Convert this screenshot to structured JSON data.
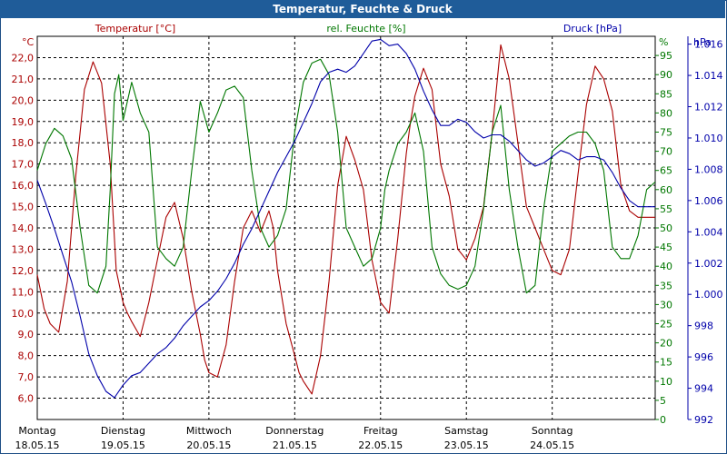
{
  "title": "Temperatur, Feuchte & Druck",
  "colors": {
    "titlebar": "#1f5c99",
    "temperature": "#aa0000",
    "humidity": "#007700",
    "pressure": "#0000aa",
    "grid": "#000000"
  },
  "chart_data": {
    "type": "line",
    "title": "Temperatur, Feuchte & Druck",
    "grid": true,
    "x_labels": [
      {
        "day": "Montag",
        "date": "18.05.15"
      },
      {
        "day": "Dienstag",
        "date": "19.05.15"
      },
      {
        "day": "Mittwoch",
        "date": "20.05.15"
      },
      {
        "day": "Donnerstag",
        "date": "21.05.15"
      },
      {
        "day": "Freitag",
        "date": "22.05.15"
      },
      {
        "day": "Samstag",
        "date": "23.05.15"
      },
      {
        "day": "Sonntag",
        "date": "24.05.15"
      }
    ],
    "x_range": [
      0,
      7.2
    ],
    "axes": {
      "temperature": {
        "label": "Temperatur [°C]",
        "unit": "°C",
        "range": [
          5.0,
          23.0
        ],
        "ticks": [
          "6,0",
          "7,0",
          "8,0",
          "9,0",
          "10,0",
          "11,0",
          "12,0",
          "13,0",
          "14,0",
          "15,0",
          "16,0",
          "17,0",
          "18,0",
          "19,0",
          "20,0",
          "21,0",
          "22,0"
        ]
      },
      "humidity": {
        "label": "rel. Feuchte [%]",
        "unit": "%",
        "range": [
          0,
          100
        ],
        "ticks": [
          "0",
          "5",
          "10",
          "15",
          "20",
          "25",
          "30",
          "35",
          "40",
          "45",
          "50",
          "55",
          "60",
          "65",
          "70",
          "75",
          "80",
          "85",
          "90",
          "95"
        ]
      },
      "pressure": {
        "label": "Druck [hPa]",
        "unit": "hPa",
        "range": [
          992,
          1016.5
        ],
        "ticks": [
          "992",
          "994",
          "996",
          "998",
          "1.000",
          "1.002",
          "1.004",
          "1.006",
          "1.008",
          "1.010",
          "1.012",
          "1.014",
          "1.016"
        ]
      }
    },
    "series": [
      {
        "name": "Temperatur [°C]",
        "axis": "temperature",
        "x": [
          0,
          0.08,
          0.15,
          0.25,
          0.35,
          0.45,
          0.55,
          0.65,
          0.75,
          0.85,
          0.92,
          1.0,
          1.05,
          1.1,
          1.2,
          1.3,
          1.4,
          1.5,
          1.6,
          1.7,
          1.8,
          1.9,
          1.95,
          2.0,
          2.1,
          2.2,
          2.3,
          2.4,
          2.5,
          2.6,
          2.7,
          2.75,
          2.8,
          2.9,
          3.0,
          3.05,
          3.1,
          3.2,
          3.3,
          3.4,
          3.5,
          3.6,
          3.7,
          3.8,
          3.9,
          4.0,
          4.1,
          4.2,
          4.3,
          4.35,
          4.4,
          4.5,
          4.6,
          4.7,
          4.8,
          4.9,
          5.0,
          5.1,
          5.2,
          5.3,
          5.4,
          5.5,
          5.6,
          5.7,
          5.8,
          5.9,
          6.0,
          6.1,
          6.2,
          6.3,
          6.4,
          6.5,
          6.6,
          6.7,
          6.8,
          6.9,
          7.0,
          7.1,
          7.2
        ],
        "y": [
          11.8,
          10.2,
          9.5,
          9.1,
          11.5,
          16.5,
          20.5,
          21.8,
          20.8,
          17.0,
          12.0,
          10.5,
          10.0,
          9.6,
          8.9,
          10.5,
          12.5,
          14.5,
          15.2,
          13.5,
          11.0,
          9.0,
          7.8,
          7.2,
          7.0,
          8.5,
          11.5,
          14.0,
          14.8,
          13.8,
          14.8,
          14.0,
          12.0,
          9.5,
          8.0,
          7.2,
          6.8,
          6.2,
          8.0,
          11.5,
          16.0,
          18.3,
          17.2,
          15.8,
          12.5,
          10.5,
          10.0,
          13.5,
          17.5,
          19.0,
          20.2,
          21.5,
          20.5,
          17.0,
          15.5,
          13.0,
          12.5,
          13.5,
          15.0,
          18.5,
          22.6,
          21.0,
          18.0,
          15.0,
          14.0,
          13.0,
          12.0,
          11.8,
          13.0,
          16.5,
          19.8,
          21.6,
          21.0,
          19.5,
          16.0,
          14.8,
          14.5,
          14.5,
          14.5
        ]
      },
      {
        "name": "rel. Feuchte [%]",
        "axis": "humidity",
        "x": [
          0,
          0.1,
          0.2,
          0.3,
          0.4,
          0.5,
          0.6,
          0.7,
          0.8,
          0.85,
          0.9,
          0.95,
          1.0,
          1.1,
          1.2,
          1.3,
          1.4,
          1.5,
          1.6,
          1.7,
          1.8,
          1.9,
          2.0,
          2.1,
          2.2,
          2.3,
          2.4,
          2.5,
          2.6,
          2.7,
          2.8,
          2.9,
          3.0,
          3.1,
          3.2,
          3.3,
          3.4,
          3.5,
          3.6,
          3.7,
          3.8,
          3.9,
          4.0,
          4.05,
          4.1,
          4.2,
          4.3,
          4.4,
          4.5,
          4.6,
          4.7,
          4.8,
          4.9,
          5.0,
          5.1,
          5.2,
          5.3,
          5.4,
          5.5,
          5.6,
          5.7,
          5.8,
          5.9,
          6.0,
          6.1,
          6.2,
          6.3,
          6.4,
          6.5,
          6.6,
          6.7,
          6.8,
          6.9,
          7.0,
          7.1,
          7.2
        ],
        "y": [
          65,
          72,
          76,
          74,
          68,
          50,
          35,
          33,
          40,
          60,
          85,
          90,
          78,
          88,
          80,
          75,
          45,
          42,
          40,
          45,
          65,
          83,
          75,
          80,
          86,
          87,
          84,
          65,
          50,
          45,
          48,
          55,
          75,
          88,
          93,
          94,
          90,
          75,
          50,
          45,
          40,
          42,
          50,
          60,
          65,
          72,
          75,
          80,
          70,
          45,
          38,
          35,
          34,
          35,
          40,
          55,
          75,
          82,
          60,
          45,
          33,
          35,
          55,
          70,
          72,
          74,
          75,
          75,
          72,
          65,
          45,
          42,
          42,
          48,
          60,
          62
        ]
      },
      {
        "name": "Druck [hPa]",
        "axis": "pressure",
        "x": [
          0,
          0.1,
          0.2,
          0.3,
          0.4,
          0.5,
          0.6,
          0.7,
          0.8,
          0.9,
          1.0,
          1.1,
          1.2,
          1.3,
          1.4,
          1.5,
          1.6,
          1.7,
          1.8,
          1.9,
          2.0,
          2.1,
          2.2,
          2.3,
          2.4,
          2.5,
          2.6,
          2.7,
          2.8,
          2.9,
          3.0,
          3.1,
          3.2,
          3.3,
          3.4,
          3.5,
          3.6,
          3.7,
          3.8,
          3.9,
          4.0,
          4.1,
          4.2,
          4.3,
          4.4,
          4.5,
          4.6,
          4.7,
          4.8,
          4.9,
          5.0,
          5.1,
          5.2,
          5.3,
          5.4,
          5.5,
          5.6,
          5.7,
          5.8,
          5.9,
          6.0,
          6.1,
          6.2,
          6.3,
          6.4,
          6.5,
          6.6,
          6.7,
          6.8,
          6.9,
          7.0,
          7.1,
          7.2
        ],
        "y": [
          1007.3,
          1005.8,
          1004.2,
          1002.5,
          1000.8,
          998.6,
          996.2,
          994.8,
          993.8,
          993.4,
          994.2,
          994.8,
          995.0,
          995.6,
          996.2,
          996.6,
          997.2,
          998.0,
          998.6,
          999.2,
          999.6,
          1000.2,
          1001.0,
          1002.0,
          1003.2,
          1004.2,
          1005.4,
          1006.6,
          1007.8,
          1008.8,
          1009.8,
          1011.0,
          1012.2,
          1013.6,
          1014.2,
          1014.4,
          1014.2,
          1014.6,
          1015.4,
          1016.2,
          1016.3,
          1015.9,
          1016.0,
          1015.4,
          1014.4,
          1013.0,
          1011.8,
          1010.8,
          1010.8,
          1011.2,
          1011.0,
          1010.4,
          1010.0,
          1010.2,
          1010.2,
          1009.8,
          1009.2,
          1008.6,
          1008.2,
          1008.4,
          1008.8,
          1009.2,
          1009.0,
          1008.6,
          1008.8,
          1008.8,
          1008.6,
          1007.8,
          1006.8,
          1006.0,
          1005.6,
          1005.6,
          1005.6
        ]
      }
    ]
  }
}
